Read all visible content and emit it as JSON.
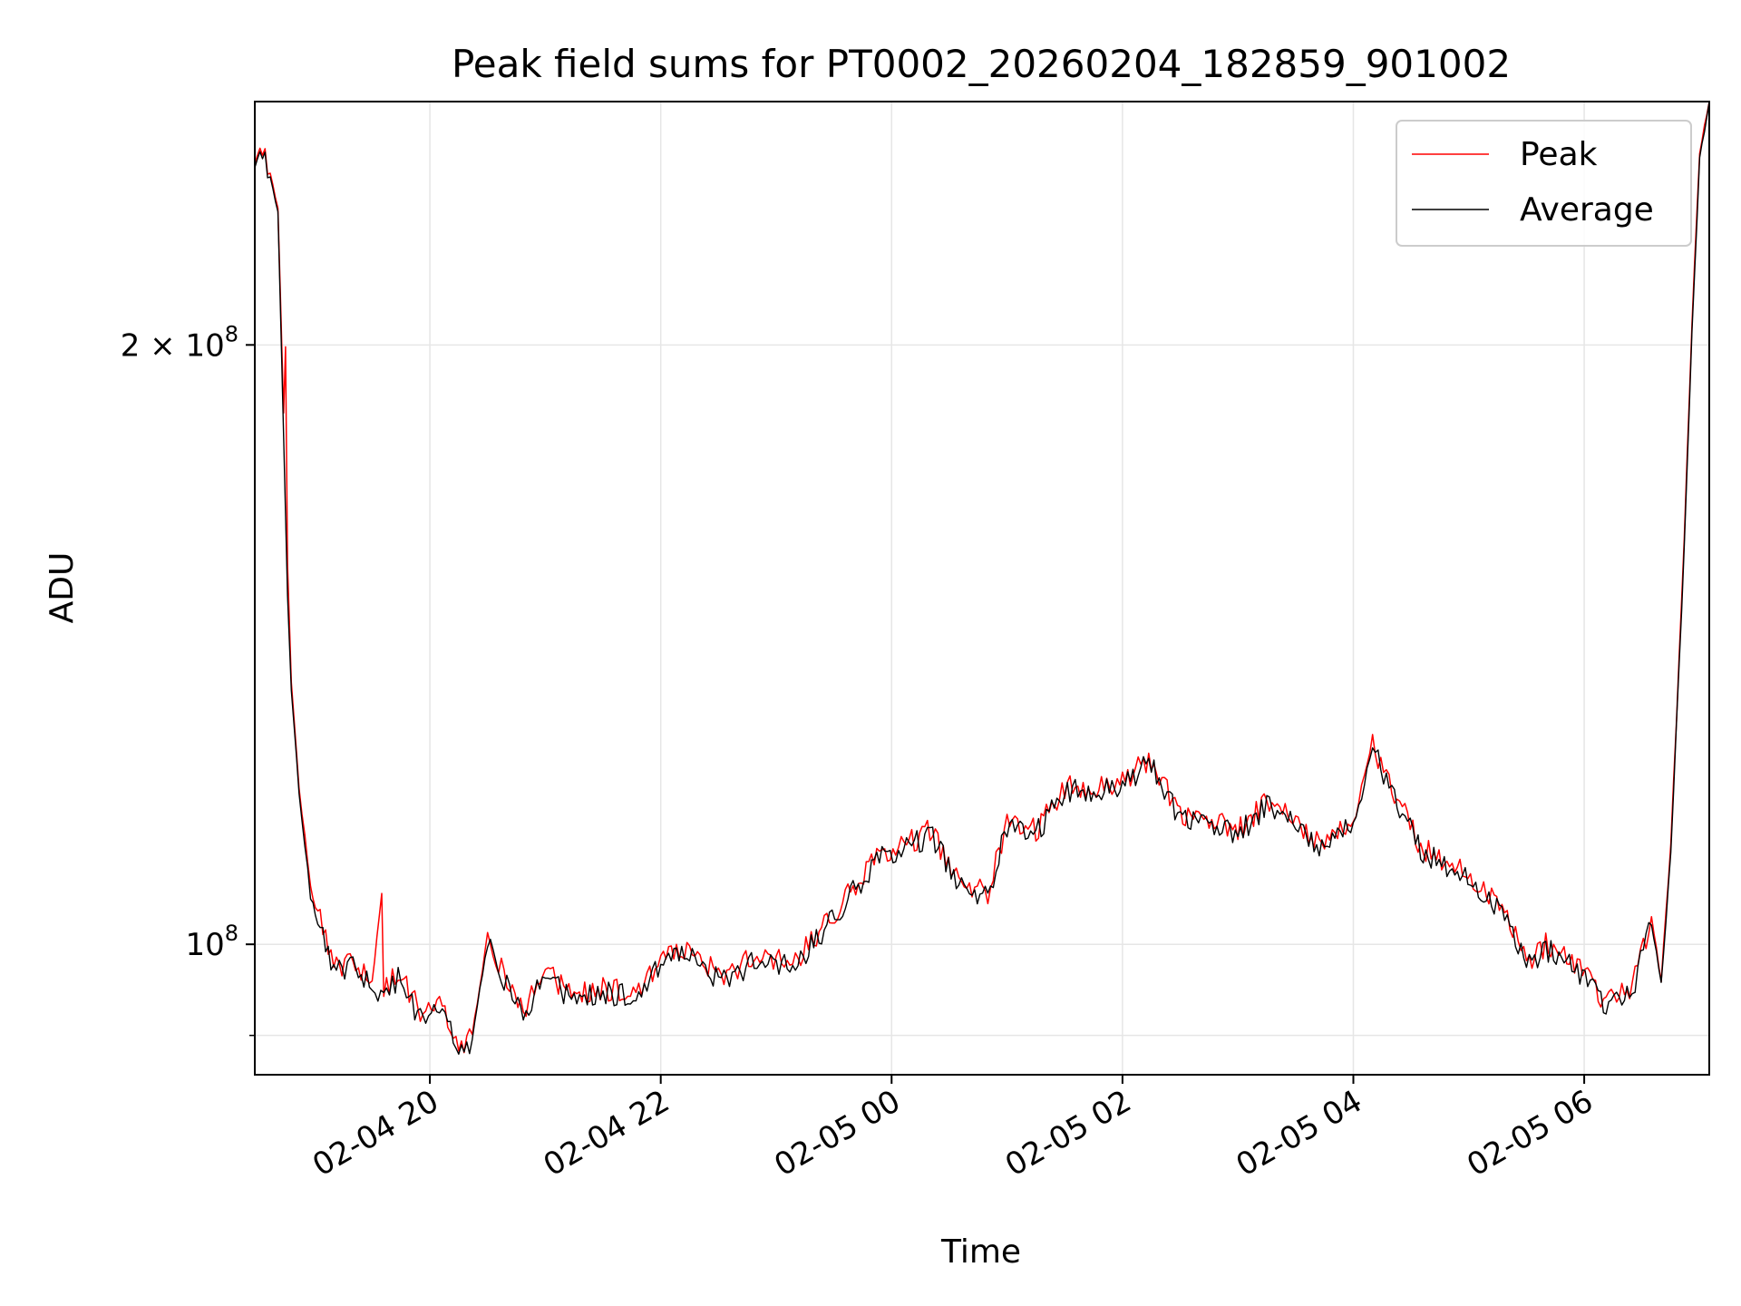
{
  "chart_data": {
    "type": "line",
    "title": "Peak field sums for PT0002_20260204_182859_901002",
    "xlabel": "Time",
    "ylabel": "ADU",
    "x_range": [
      "2026-02-04 18:29",
      "2026-02-05 07:05"
    ],
    "y_scale": "log",
    "ylim": [
      86000000.0,
      265000000.0
    ],
    "y_ticks": [
      {
        "value": 200000000.0,
        "base": "2 × 10",
        "exp": "8"
      },
      {
        "value": 100000000.0,
        "base": "10",
        "exp": "8"
      }
    ],
    "y_minor_ticks": [
      90000000.0
    ],
    "x_ticks": [
      {
        "t": "2026-02-04 20:00",
        "label": "02-04 20"
      },
      {
        "t": "2026-02-04 22:00",
        "label": "02-04 22"
      },
      {
        "t": "2026-02-05 00:00",
        "label": "02-05 00"
      },
      {
        "t": "2026-02-05 02:00",
        "label": "02-05 02"
      },
      {
        "t": "2026-02-05 04:00",
        "label": "02-05 04"
      },
      {
        "t": "2026-02-05 06:00",
        "label": "02-05 06"
      }
    ],
    "grid": true,
    "legend_position": "top-right",
    "series": [
      {
        "name": "Peak",
        "color": "#ff0000",
        "points": [
          [
            "2026-02-04 18:29",
            245000000.0
          ],
          [
            "2026-02-04 18:33",
            250000000.0
          ],
          [
            "2026-02-04 18:37",
            244000000.0
          ],
          [
            "2026-02-04 18:41",
            235000000.0
          ],
          [
            "2026-02-04 18:44",
            185000000.0
          ],
          [
            "2026-02-04 18:45",
            200000000.0
          ],
          [
            "2026-02-04 18:46",
            155000000.0
          ],
          [
            "2026-02-04 18:48",
            135000000.0
          ],
          [
            "2026-02-04 18:52",
            120000000.0
          ],
          [
            "2026-02-04 18:58",
            107000000.0
          ],
          [
            "2026-02-04 19:03",
            103000000.0
          ],
          [
            "2026-02-04 19:10",
            97000000.0
          ],
          [
            "2026-02-04 19:20",
            98000000.0
          ],
          [
            "2026-02-04 19:30",
            96000000.0
          ],
          [
            "2026-02-04 19:35",
            106000000.0
          ],
          [
            "2026-02-04 19:36",
            95000000.0
          ],
          [
            "2026-02-04 19:45",
            97000000.0
          ],
          [
            "2026-02-04 19:55",
            92000000.0
          ],
          [
            "2026-02-04 20:05",
            93000000.0
          ],
          [
            "2026-02-04 20:15",
            89000000.0
          ],
          [
            "2026-02-04 20:22",
            90000000.0
          ],
          [
            "2026-02-04 20:30",
            101000000.0
          ],
          [
            "2026-02-04 20:40",
            96000000.0
          ],
          [
            "2026-02-04 20:50",
            93000000.0
          ],
          [
            "2026-02-04 21:00",
            97000000.0
          ],
          [
            "2026-02-04 21:15",
            94000000.0
          ],
          [
            "2026-02-04 21:30",
            95000000.0
          ],
          [
            "2026-02-04 21:50",
            95000000.0
          ],
          [
            "2026-02-04 22:00",
            98500000.0
          ],
          [
            "2026-02-04 22:15",
            100000000.0
          ],
          [
            "2026-02-04 22:30",
            96500000.0
          ],
          [
            "2026-02-04 22:50",
            98500000.0
          ],
          [
            "2026-02-04 23:10",
            98000000.0
          ],
          [
            "2026-02-04 23:25",
            102000000.0
          ],
          [
            "2026-02-04 23:40",
            107000000.0
          ],
          [
            "2026-02-04 23:55",
            111000000.0
          ],
          [
            "2026-02-05 00:05",
            112000000.0
          ],
          [
            "2026-02-05 00:20",
            114000000.0
          ],
          [
            "2026-02-05 00:35",
            108000000.0
          ],
          [
            "2026-02-05 00:50",
            106000000.0
          ],
          [
            "2026-02-05 01:00",
            115000000.0
          ],
          [
            "2026-02-05 01:15",
            114000000.0
          ],
          [
            "2026-02-05 01:30",
            120000000.0
          ],
          [
            "2026-02-05 01:45",
            120000000.0
          ],
          [
            "2026-02-05 02:00",
            121000000.0
          ],
          [
            "2026-02-05 02:15",
            124000000.0
          ],
          [
            "2026-02-05 02:30",
            116000000.0
          ],
          [
            "2026-02-05 02:45",
            116000000.0
          ],
          [
            "2026-02-05 03:00",
            114000000.0
          ],
          [
            "2026-02-05 03:15",
            118000000.0
          ],
          [
            "2026-02-05 03:30",
            115000000.0
          ],
          [
            "2026-02-05 03:45",
            112000000.0
          ],
          [
            "2026-02-05 04:00",
            116000000.0
          ],
          [
            "2026-02-05 04:10",
            126000000.0
          ],
          [
            "2026-02-05 04:20",
            120000000.0
          ],
          [
            "2026-02-05 04:35",
            112000000.0
          ],
          [
            "2026-02-05 04:50",
            110000000.0
          ],
          [
            "2026-02-05 05:05",
            107000000.0
          ],
          [
            "2026-02-05 05:20",
            103000000.0
          ],
          [
            "2026-02-05 05:30",
            98000000.0
          ],
          [
            "2026-02-05 05:40",
            100000000.0
          ],
          [
            "2026-02-05 05:55",
            98000000.0
          ],
          [
            "2026-02-05 06:10",
            94000000.0
          ],
          [
            "2026-02-05 06:25",
            95000000.0
          ],
          [
            "2026-02-05 06:35",
            103000000.0
          ],
          [
            "2026-02-05 06:40",
            96000000.0
          ],
          [
            "2026-02-05 06:45",
            112000000.0
          ],
          [
            "2026-02-05 06:48",
            130000000.0
          ],
          [
            "2026-02-05 06:52",
            160000000.0
          ],
          [
            "2026-02-05 06:56",
            205000000.0
          ],
          [
            "2026-02-05 07:00",
            250000000.0
          ],
          [
            "2026-02-05 07:05",
            265000000.0
          ]
        ]
      },
      {
        "name": "Average",
        "color": "#000000",
        "points": [
          [
            "2026-02-04 18:29",
            244000000.0
          ],
          [
            "2026-02-04 18:33",
            249000000.0
          ],
          [
            "2026-02-04 18:37",
            243000000.0
          ],
          [
            "2026-02-04 18:41",
            234000000.0
          ],
          [
            "2026-02-04 18:44",
            180000000.0
          ],
          [
            "2026-02-04 18:46",
            150000000.0
          ],
          [
            "2026-02-04 18:48",
            134000000.0
          ],
          [
            "2026-02-04 18:52",
            119000000.0
          ],
          [
            "2026-02-04 18:58",
            106000000.0
          ],
          [
            "2026-02-04 19:03",
            102000000.0
          ],
          [
            "2026-02-04 19:10",
            96500000.0
          ],
          [
            "2026-02-04 19:20",
            97500000.0
          ],
          [
            "2026-02-04 19:30",
            95500000.0
          ],
          [
            "2026-02-04 19:36",
            94500000.0
          ],
          [
            "2026-02-04 19:45",
            96500000.0
          ],
          [
            "2026-02-04 19:55",
            91500000.0
          ],
          [
            "2026-02-04 20:05",
            92500000.0
          ],
          [
            "2026-02-04 20:15",
            88500000.0
          ],
          [
            "2026-02-04 20:22",
            89500000.0
          ],
          [
            "2026-02-04 20:30",
            100500000.0
          ],
          [
            "2026-02-04 20:40",
            95500000.0
          ],
          [
            "2026-02-04 20:50",
            92500000.0
          ],
          [
            "2026-02-04 21:00",
            96500000.0
          ],
          [
            "2026-02-04 21:15",
            93500000.0
          ],
          [
            "2026-02-04 21:30",
            94500000.0
          ],
          [
            "2026-02-04 21:50",
            94500000.0
          ],
          [
            "2026-02-04 22:00",
            98000000.0
          ],
          [
            "2026-02-04 22:15",
            99500000.0
          ],
          [
            "2026-02-04 22:30",
            96000000.0
          ],
          [
            "2026-02-04 22:50",
            98000000.0
          ],
          [
            "2026-02-04 23:10",
            97500000.0
          ],
          [
            "2026-02-04 23:25",
            101500000.0
          ],
          [
            "2026-02-04 23:40",
            106500000.0
          ],
          [
            "2026-02-04 23:55",
            110500000.0
          ],
          [
            "2026-02-05 00:05",
            111500000.0
          ],
          [
            "2026-02-05 00:20",
            113500000.0
          ],
          [
            "2026-02-05 00:35",
            107500000.0
          ],
          [
            "2026-02-05 00:50",
            105500000.0
          ],
          [
            "2026-02-05 01:00",
            114500000.0
          ],
          [
            "2026-02-05 01:15",
            113500000.0
          ],
          [
            "2026-02-05 01:30",
            119500000.0
          ],
          [
            "2026-02-05 01:45",
            119500000.0
          ],
          [
            "2026-02-05 02:00",
            120500000.0
          ],
          [
            "2026-02-05 02:15",
            123500000.0
          ],
          [
            "2026-02-05 02:30",
            115500000.0
          ],
          [
            "2026-02-05 02:45",
            115500000.0
          ],
          [
            "2026-02-05 03:00",
            113500000.0
          ],
          [
            "2026-02-05 03:15",
            117500000.0
          ],
          [
            "2026-02-05 03:30",
            114500000.0
          ],
          [
            "2026-02-05 03:45",
            111500000.0
          ],
          [
            "2026-02-05 04:00",
            115500000.0
          ],
          [
            "2026-02-05 04:10",
            125500000.0
          ],
          [
            "2026-02-05 04:20",
            119500000.0
          ],
          [
            "2026-02-05 04:35",
            111500000.0
          ],
          [
            "2026-02-05 04:50",
            109500000.0
          ],
          [
            "2026-02-05 05:05",
            106500000.0
          ],
          [
            "2026-02-05 05:20",
            102500000.0
          ],
          [
            "2026-02-05 05:30",
            97500000.0
          ],
          [
            "2026-02-05 05:40",
            99500000.0
          ],
          [
            "2026-02-05 05:55",
            97500000.0
          ],
          [
            "2026-02-05 06:10",
            93500000.0
          ],
          [
            "2026-02-05 06:25",
            94500000.0
          ],
          [
            "2026-02-05 06:35",
            102500000.0
          ],
          [
            "2026-02-05 06:40",
            95500000.0
          ],
          [
            "2026-02-05 06:45",
            111000000.0
          ],
          [
            "2026-02-05 06:48",
            129000000.0
          ],
          [
            "2026-02-05 06:52",
            158000000.0
          ],
          [
            "2026-02-05 06:56",
            203000000.0
          ],
          [
            "2026-02-05 07:00",
            248000000.0
          ],
          [
            "2026-02-05 07:05",
            265000000.0
          ]
        ]
      }
    ]
  }
}
